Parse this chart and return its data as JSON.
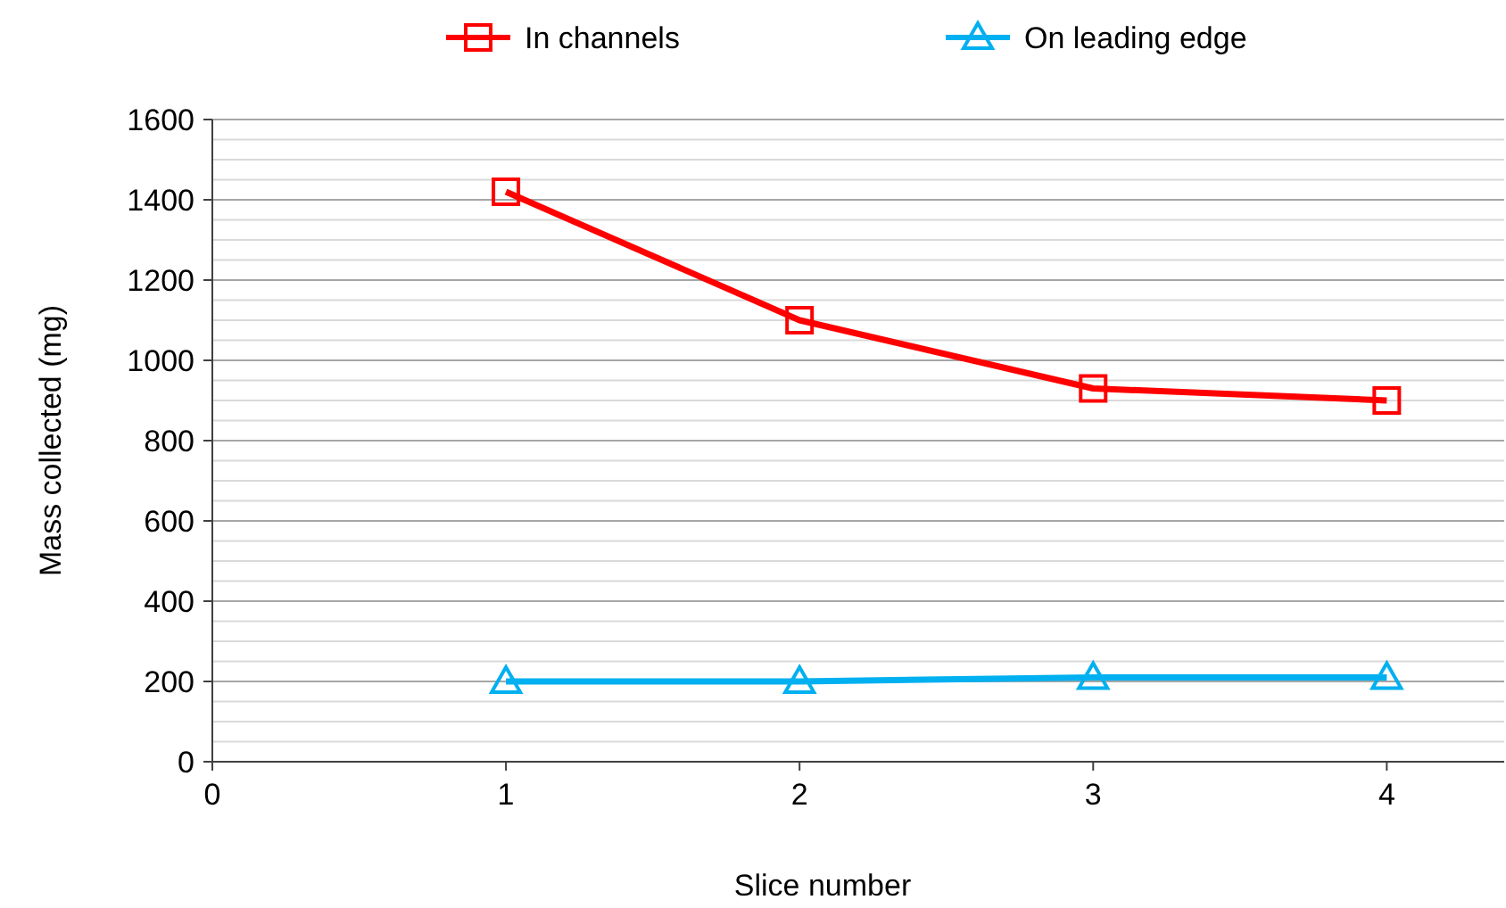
{
  "chart_data": {
    "type": "line",
    "xlabel": "Slice number",
    "ylabel": "Mass collected (mg)",
    "x": [
      1,
      2,
      3,
      4
    ],
    "series": [
      {
        "name": "In channels",
        "color": "#ff0000",
        "marker": "square",
        "values": [
          1420,
          1100,
          930,
          900
        ]
      },
      {
        "name": "On leading edge",
        "color": "#00b0f0",
        "marker": "triangle",
        "values": [
          200,
          200,
          210,
          210
        ]
      }
    ],
    "xlim": [
      0,
      4.4
    ],
    "xticks": [
      0,
      1,
      2,
      3,
      4
    ],
    "ylim": [
      0,
      1600
    ],
    "yticks": [
      0,
      {
        "value": 50,
        "label": null
      },
      {
        "value": 100,
        "label": null
      },
      {
        "value": 150,
        "label": null
      },
      200,
      {
        "value": 250,
        "label": null
      },
      {
        "value": 300,
        "label": null
      },
      {
        "value": 350,
        "label": null
      },
      400,
      {
        "value": 450,
        "label": null
      },
      {
        "value": 500,
        "label": null
      },
      {
        "value": 550,
        "label": null
      },
      600,
      {
        "value": 650,
        "label": null
      },
      {
        "value": 700,
        "label": null
      },
      {
        "value": 750,
        "label": null
      },
      800,
      {
        "value": 850,
        "label": null
      },
      {
        "value": 900,
        "label": null
      },
      {
        "value": 950,
        "label": null
      },
      1000,
      {
        "value": 1050,
        "label": null
      },
      {
        "value": 1100,
        "label": null
      },
      {
        "value": 1150,
        "label": null
      },
      1200,
      {
        "value": 1250,
        "label": null
      },
      {
        "value": 1300,
        "label": null
      },
      {
        "value": 1350,
        "label": null
      },
      1400,
      {
        "value": 1450,
        "label": null
      },
      {
        "value": 1500,
        "label": null
      },
      {
        "value": 1550,
        "label": null
      },
      1600
    ],
    "grid": "y",
    "legend": "top",
    "line_style": "solid"
  }
}
